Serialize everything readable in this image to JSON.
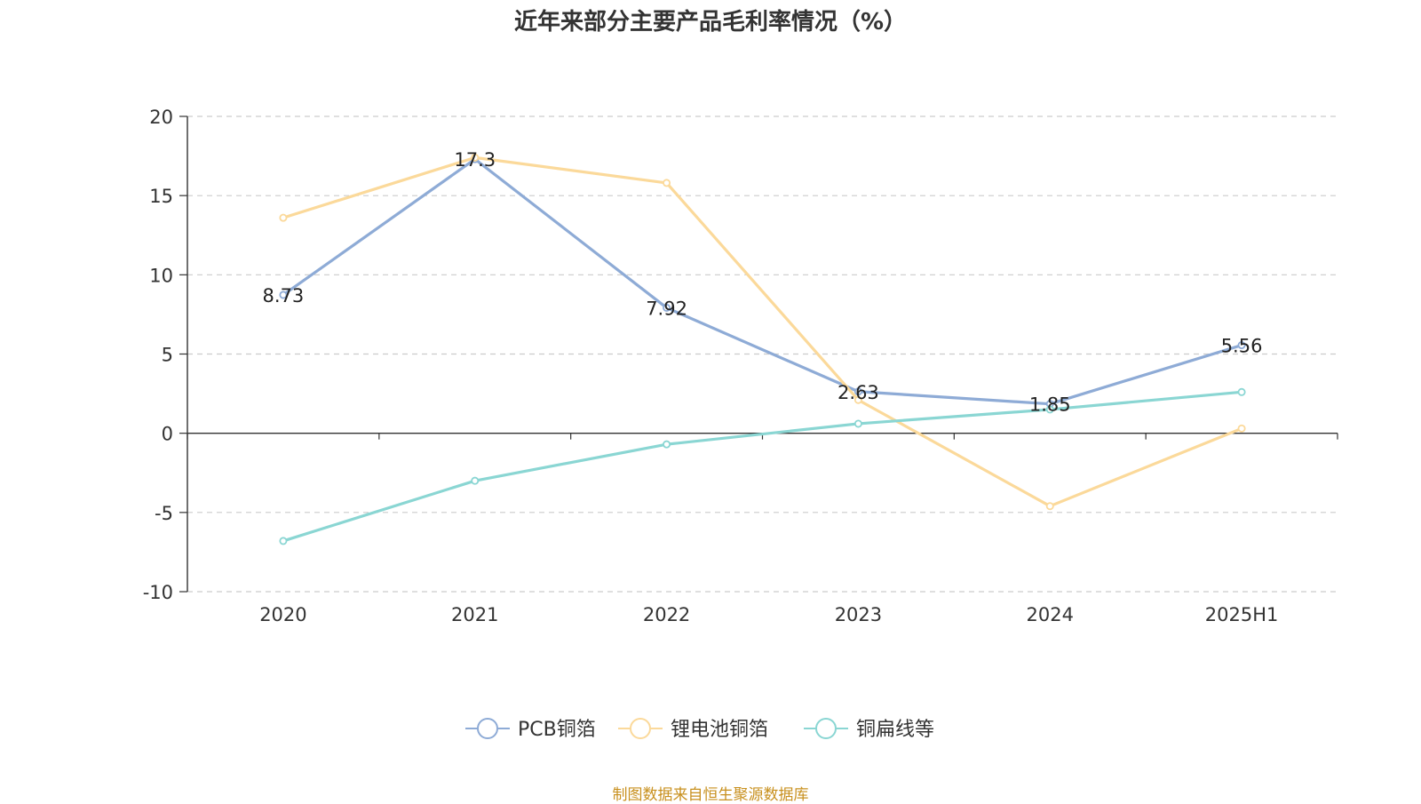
{
  "chart_data": {
    "type": "line",
    "title": "近年来部分主要产品毛利率情况（%）",
    "categories": [
      "2020",
      "2021",
      "2022",
      "2023",
      "2024",
      "2025H1"
    ],
    "ylim": [
      -10,
      20
    ],
    "yticks": [
      -10,
      -5,
      0,
      5,
      10,
      15,
      20
    ],
    "grid": true,
    "legend_position": "bottom",
    "series": [
      {
        "name": "PCB铜箔",
        "color": "#8eabd6",
        "values": [
          8.73,
          17.3,
          7.92,
          2.63,
          1.85,
          5.56
        ],
        "labels": [
          "8.73",
          "17.3",
          "7.92",
          "2.63",
          "1.85",
          "5.56"
        ]
      },
      {
        "name": "锂电池铜箔",
        "color": "#fbd99a",
        "values": [
          13.6,
          17.4,
          15.8,
          2.1,
          -4.6,
          0.3
        ]
      },
      {
        "name": "铜扁线等",
        "color": "#8ad6d3",
        "values": [
          -6.8,
          -3.0,
          -0.7,
          0.6,
          1.5,
          2.6
        ]
      }
    ]
  },
  "footer": {
    "source": "制图数据来自恒生聚源数据库"
  }
}
